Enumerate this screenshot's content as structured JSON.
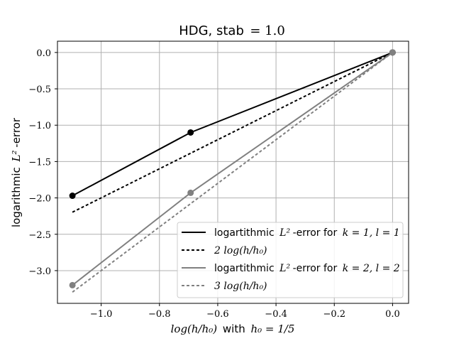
{
  "colors": {
    "series1": "#000000",
    "series2": "#808080",
    "grid": "#b0b0b0",
    "axis": "#000000",
    "legend_border": "#cccccc"
  },
  "chart_data": {
    "type": "line",
    "title_text": "HDG, stab",
    "title_math": "= 1.0",
    "xlabel_math": "log(h/h₀)",
    "xlabel_text": "with",
    "xlabel_math2": "h₀ = 1/5",
    "ylabel_text": "logarithmic",
    "ylabel_math": "L²",
    "ylabel_suffix": "-error",
    "xlim": [
      -1.15,
      0.055
    ],
    "ylim": [
      -3.45,
      0.155
    ],
    "xticks": [
      -1.0,
      -0.8,
      -0.6,
      -0.4,
      -0.2,
      0.0
    ],
    "xtick_labels": [
      "−1.0",
      "−0.8",
      "−0.6",
      "−0.4",
      "−0.2",
      "0.0"
    ],
    "yticks": [
      0.0,
      -0.5,
      -1.0,
      -1.5,
      -2.0,
      -2.5,
      -3.0
    ],
    "ytick_labels": [
      "0.0",
      "−0.5",
      "−1.0",
      "−1.5",
      "−2.0",
      "−2.5",
      "−3.0"
    ],
    "grid": true,
    "legend_position": "lower-right",
    "series": [
      {
        "name": "logartithmic L²-error for k = 1, l = 1",
        "legend_text": "logartithmic",
        "legend_math": "L²",
        "legend_suffix": "-error for",
        "legend_math2": "k = 1, l = 1",
        "style": "solid-marker",
        "color_key": "series1",
        "x": [
          -1.0986,
          -0.6931,
          0.0
        ],
        "y": [
          -1.97,
          -1.1,
          0.0
        ]
      },
      {
        "name": "2 log(h/h₀)",
        "legend_math": "2 log(h/h₀)",
        "style": "dashed",
        "color_key": "series1",
        "x": [
          -1.0986,
          0.0
        ],
        "y": [
          -2.197,
          0.0
        ]
      },
      {
        "name": "logartithmic L²-error for k = 2, l = 2",
        "legend_text": "logartithmic",
        "legend_math": "L²",
        "legend_suffix": "-error for",
        "legend_math2": "k = 2, l = 2",
        "style": "solid-marker",
        "color_key": "series2",
        "x": [
          -1.0986,
          -0.6931,
          0.0
        ],
        "y": [
          -3.2,
          -1.93,
          0.0
        ]
      },
      {
        "name": "3 log(h/h₀)",
        "legend_math": "3 log(h/h₀)",
        "style": "dashed",
        "color_key": "series2",
        "x": [
          -1.0986,
          0.0
        ],
        "y": [
          -3.296,
          0.0
        ]
      }
    ]
  }
}
